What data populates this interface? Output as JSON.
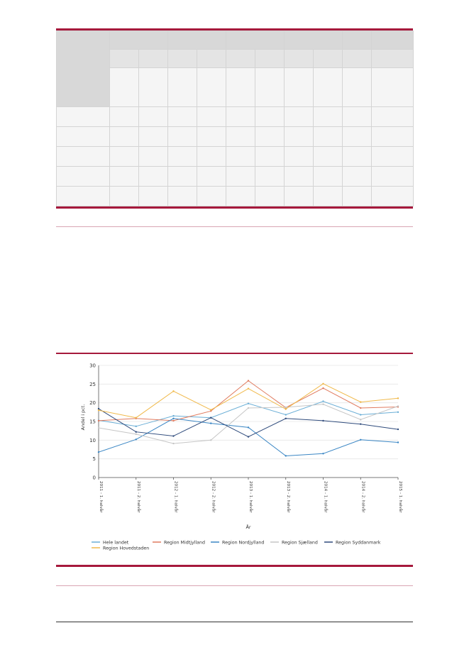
{
  "chart_data": {
    "type": "line",
    "title": "",
    "xlabel": "År",
    "ylabel": "Andel i pct.",
    "ylim": [
      0,
      30
    ],
    "yticks": [
      0,
      5,
      10,
      15,
      20,
      25,
      30
    ],
    "grid": true,
    "legend_position": "bottom",
    "categories": [
      "2011 - 1. halvår",
      "2011 - 2. halvår",
      "2012 - 1. halvår",
      "2012 - 2. halvår",
      "2013 - 1. halvår",
      "2013 - 2. halvår",
      "2014 - 1. halvår",
      "2014 - 2. halvår",
      "2015 - 1. halvår"
    ],
    "series": [
      {
        "name": "Hele landet",
        "color": "#6aaed6",
        "values": [
          15.3,
          13.7,
          16.5,
          16.0,
          19.8,
          16.8,
          20.4,
          16.8,
          17.5
        ]
      },
      {
        "name": "Region Midtjylland",
        "color": "#e07b5f",
        "values": [
          15.2,
          15.8,
          15.2,
          17.8,
          25.9,
          18.7,
          23.9,
          18.6,
          18.9
        ]
      },
      {
        "name": "Region Nordjylland",
        "color": "#3a86c4",
        "values": [
          6.8,
          10.2,
          15.8,
          14.5,
          13.4,
          5.8,
          6.4,
          10.1,
          9.4
        ]
      },
      {
        "name": "Region Sjælland",
        "color": "#c6c6c6",
        "values": [
          13.3,
          11.6,
          9.1,
          10.0,
          18.6,
          18.8,
          19.6,
          15.5,
          19.1
        ]
      },
      {
        "name": "Region Syddanmark",
        "color": "#2f4b7c",
        "values": [
          18.4,
          12.2,
          11.1,
          16.0,
          10.9,
          15.8,
          15.2,
          14.3,
          12.9
        ]
      },
      {
        "name": "Region Hovedstaden",
        "color": "#f0b94a",
        "values": [
          18.0,
          16.0,
          23.1,
          18.1,
          23.8,
          18.3,
          25.1,
          20.2,
          21.2
        ]
      }
    ]
  }
}
